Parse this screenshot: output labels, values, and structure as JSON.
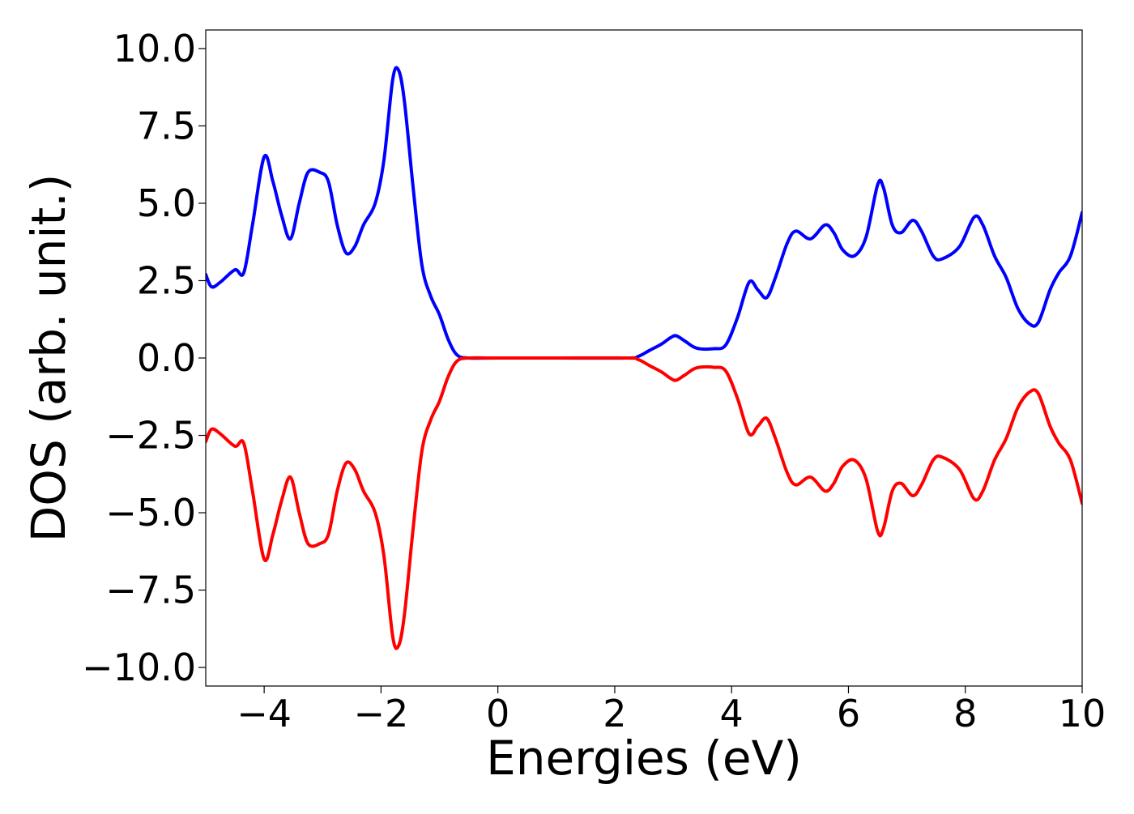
{
  "chart_data": {
    "type": "line",
    "title": "",
    "xlabel": "Energies (eV)",
    "ylabel": "DOS (arb. unit.)",
    "xlim": [
      -5,
      10
    ],
    "ylim": [
      -10.6,
      10.6
    ],
    "xticks": [
      -4,
      -2,
      0,
      2,
      4,
      6,
      8,
      10
    ],
    "xtick_labels": [
      "−4",
      "−2",
      "0",
      "2",
      "4",
      "6",
      "8",
      "10"
    ],
    "yticks": [
      10.0,
      7.5,
      5.0,
      2.5,
      0.0,
      -2.5,
      -5.0,
      -7.5,
      -10.0
    ],
    "ytick_labels": [
      "10.0",
      "7.5",
      "5.0",
      "2.5",
      "0.0",
      "−2.5",
      "−5.0",
      "−7.5",
      "−10.0"
    ],
    "grid": false,
    "legend": "none",
    "series": [
      {
        "color": "#0000ff",
        "points": [
          [
            -5.0,
            2.7
          ],
          [
            -4.9,
            2.3
          ],
          [
            -4.75,
            2.45
          ],
          [
            -4.5,
            2.85
          ],
          [
            -4.35,
            2.75
          ],
          [
            -4.2,
            4.3
          ],
          [
            -4.0,
            6.5
          ],
          [
            -3.85,
            5.7
          ],
          [
            -3.7,
            4.6
          ],
          [
            -3.55,
            3.85
          ],
          [
            -3.4,
            5.0
          ],
          [
            -3.25,
            6.0
          ],
          [
            -3.05,
            6.0
          ],
          [
            -2.9,
            5.7
          ],
          [
            -2.75,
            4.3
          ],
          [
            -2.6,
            3.4
          ],
          [
            -2.45,
            3.6
          ],
          [
            -2.3,
            4.3
          ],
          [
            -2.1,
            5.0
          ],
          [
            -1.95,
            6.4
          ],
          [
            -1.8,
            9.0
          ],
          [
            -1.7,
            9.3
          ],
          [
            -1.6,
            8.3
          ],
          [
            -1.45,
            5.5
          ],
          [
            -1.3,
            3.0
          ],
          [
            -1.15,
            2.0
          ],
          [
            -1.0,
            1.4
          ],
          [
            -0.85,
            0.6
          ],
          [
            -0.7,
            0.1
          ],
          [
            -0.5,
            0.0
          ],
          [
            0.0,
            0.0
          ],
          [
            1.0,
            0.0
          ],
          [
            2.2,
            0.0
          ],
          [
            2.4,
            0.05
          ],
          [
            2.6,
            0.25
          ],
          [
            2.8,
            0.45
          ],
          [
            2.95,
            0.65
          ],
          [
            3.05,
            0.72
          ],
          [
            3.2,
            0.55
          ],
          [
            3.4,
            0.32
          ],
          [
            3.7,
            0.3
          ],
          [
            3.9,
            0.42
          ],
          [
            4.1,
            1.3
          ],
          [
            4.3,
            2.45
          ],
          [
            4.45,
            2.2
          ],
          [
            4.6,
            1.95
          ],
          [
            4.75,
            2.6
          ],
          [
            4.95,
            3.7
          ],
          [
            5.1,
            4.1
          ],
          [
            5.35,
            3.85
          ],
          [
            5.6,
            4.3
          ],
          [
            5.75,
            4.05
          ],
          [
            5.9,
            3.5
          ],
          [
            6.1,
            3.3
          ],
          [
            6.3,
            3.9
          ],
          [
            6.5,
            5.6
          ],
          [
            6.6,
            5.5
          ],
          [
            6.75,
            4.3
          ],
          [
            6.9,
            4.05
          ],
          [
            7.1,
            4.45
          ],
          [
            7.25,
            4.1
          ],
          [
            7.45,
            3.3
          ],
          [
            7.6,
            3.2
          ],
          [
            7.9,
            3.6
          ],
          [
            8.15,
            4.55
          ],
          [
            8.3,
            4.3
          ],
          [
            8.5,
            3.3
          ],
          [
            8.7,
            2.6
          ],
          [
            8.9,
            1.6
          ],
          [
            9.1,
            1.1
          ],
          [
            9.25,
            1.15
          ],
          [
            9.45,
            2.2
          ],
          [
            9.6,
            2.75
          ],
          [
            9.8,
            3.3
          ],
          [
            10.0,
            4.7
          ]
        ]
      },
      {
        "color": "#ff0000",
        "points": [
          [
            -5.0,
            -2.7
          ],
          [
            -4.9,
            -2.3
          ],
          [
            -4.75,
            -2.45
          ],
          [
            -4.5,
            -2.85
          ],
          [
            -4.35,
            -2.75
          ],
          [
            -4.2,
            -4.3
          ],
          [
            -4.0,
            -6.5
          ],
          [
            -3.85,
            -5.7
          ],
          [
            -3.7,
            -4.6
          ],
          [
            -3.55,
            -3.85
          ],
          [
            -3.4,
            -5.0
          ],
          [
            -3.25,
            -6.0
          ],
          [
            -3.05,
            -6.0
          ],
          [
            -2.9,
            -5.7
          ],
          [
            -2.75,
            -4.3
          ],
          [
            -2.6,
            -3.4
          ],
          [
            -2.45,
            -3.6
          ],
          [
            -2.3,
            -4.3
          ],
          [
            -2.1,
            -5.0
          ],
          [
            -1.95,
            -6.4
          ],
          [
            -1.8,
            -9.0
          ],
          [
            -1.7,
            -9.3
          ],
          [
            -1.6,
            -8.3
          ],
          [
            -1.45,
            -5.5
          ],
          [
            -1.3,
            -3.0
          ],
          [
            -1.15,
            -2.0
          ],
          [
            -1.0,
            -1.4
          ],
          [
            -0.85,
            -0.6
          ],
          [
            -0.7,
            -0.1
          ],
          [
            -0.5,
            0.0
          ],
          [
            0.0,
            0.0
          ],
          [
            1.0,
            0.0
          ],
          [
            2.2,
            0.0
          ],
          [
            2.4,
            -0.05
          ],
          [
            2.6,
            -0.25
          ],
          [
            2.8,
            -0.45
          ],
          [
            2.95,
            -0.65
          ],
          [
            3.05,
            -0.72
          ],
          [
            3.2,
            -0.55
          ],
          [
            3.4,
            -0.32
          ],
          [
            3.7,
            -0.3
          ],
          [
            3.9,
            -0.42
          ],
          [
            4.1,
            -1.3
          ],
          [
            4.3,
            -2.45
          ],
          [
            4.45,
            -2.2
          ],
          [
            4.6,
            -1.95
          ],
          [
            4.75,
            -2.6
          ],
          [
            4.95,
            -3.7
          ],
          [
            5.1,
            -4.1
          ],
          [
            5.35,
            -3.85
          ],
          [
            5.6,
            -4.3
          ],
          [
            5.75,
            -4.05
          ],
          [
            5.9,
            -3.5
          ],
          [
            6.1,
            -3.3
          ],
          [
            6.3,
            -3.9
          ],
          [
            6.5,
            -5.6
          ],
          [
            6.6,
            -5.5
          ],
          [
            6.75,
            -4.3
          ],
          [
            6.9,
            -4.05
          ],
          [
            7.1,
            -4.45
          ],
          [
            7.25,
            -4.1
          ],
          [
            7.45,
            -3.3
          ],
          [
            7.6,
            -3.2
          ],
          [
            7.9,
            -3.6
          ],
          [
            8.15,
            -4.55
          ],
          [
            8.3,
            -4.3
          ],
          [
            8.5,
            -3.3
          ],
          [
            8.7,
            -2.6
          ],
          [
            8.9,
            -1.6
          ],
          [
            9.1,
            -1.1
          ],
          [
            9.25,
            -1.15
          ],
          [
            9.45,
            -2.2
          ],
          [
            9.6,
            -2.75
          ],
          [
            9.8,
            -3.3
          ],
          [
            10.0,
            -4.7
          ]
        ]
      }
    ]
  }
}
